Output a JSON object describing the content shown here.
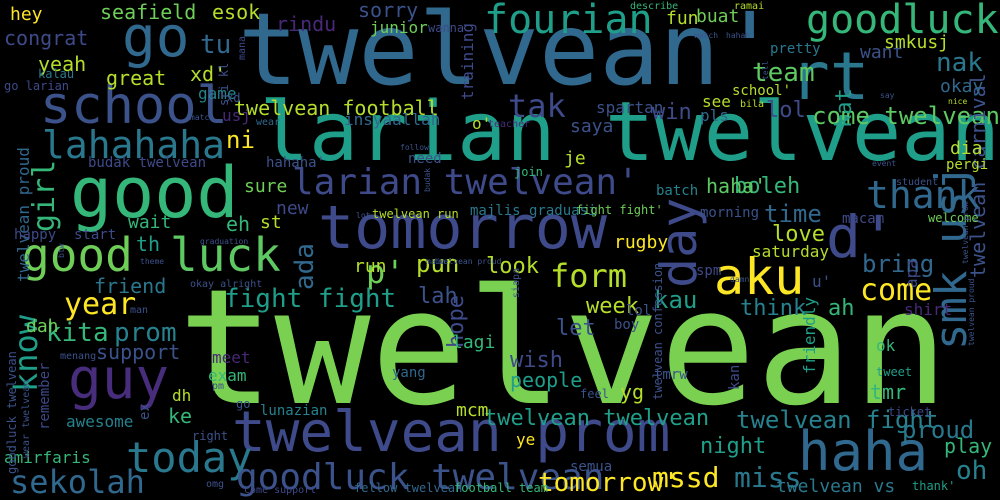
{
  "background": "#000000",
  "palette": [
    "#440154",
    "#482878",
    "#3e4a89",
    "#31688e",
    "#26828e",
    "#1f9e89",
    "#35b779",
    "#6ece58",
    "#b5de2b",
    "#fde725"
  ],
  "words": [
    {
      "text": "twelvean",
      "color": "#7ad151"
    },
    {
      "text": "twelvean'",
      "color": "#31688e"
    },
    {
      "text": "larian twelvean",
      "color": "#1f9e89"
    },
    {
      "text": "tomorrow",
      "color": "#3e4a89"
    },
    {
      "text": "good",
      "color": "#35b779"
    },
    {
      "text": "school",
      "color": "#3b528b"
    },
    {
      "text": "rt",
      "color": "#2a788e"
    },
    {
      "text": "twelvean prom",
      "color": "#3e4a89"
    },
    {
      "text": "larian twelvean'",
      "color": "#3e4a89"
    },
    {
      "text": "good",
      "color": "#6ece58"
    },
    {
      "text": "luck",
      "color": "#5ec962"
    },
    {
      "text": "go",
      "color": "#31688e"
    },
    {
      "text": "guy",
      "color": "#472d7b"
    },
    {
      "text": "aku",
      "color": "#fde725"
    },
    {
      "text": "d'",
      "color": "#3e4a89"
    },
    {
      "text": "haha",
      "color": "#31688e"
    },
    {
      "text": "day",
      "color": "#3e4a89"
    },
    {
      "text": "smk usj",
      "color": "#31688e"
    },
    {
      "text": "fourian",
      "color": "#1f9e89"
    },
    {
      "text": "goodluck",
      "color": "#35b779"
    },
    {
      "text": "today",
      "color": "#2a788e"
    },
    {
      "text": "know",
      "color": "#1f9e89"
    },
    {
      "text": "lahahaha",
      "color": "#2a788e"
    },
    {
      "text": "thank",
      "color": "#31688e"
    },
    {
      "text": "goodluck twelvean",
      "color": "#3b528b"
    },
    {
      "text": "sekolah",
      "color": "#31688e"
    },
    {
      "text": "form",
      "color": "#b5de2b"
    },
    {
      "text": "year",
      "color": "#fde725"
    },
    {
      "text": "girl",
      "color": "#35b779"
    },
    {
      "text": "tak",
      "color": "#3e4a89"
    },
    {
      "text": "p'",
      "color": "#6ece58"
    },
    {
      "text": "come",
      "color": "#fde725"
    },
    {
      "text": "mssd",
      "color": "#fde725"
    },
    {
      "text": "miss",
      "color": "#2a788e"
    },
    {
      "text": "oh",
      "color": "#26828e"
    },
    {
      "text": "nak",
      "color": "#2a788e"
    },
    {
      "text": "fight fight",
      "color": "#1f9e89"
    },
    {
      "text": "tu",
      "color": "#31688e"
    },
    {
      "text": "twelvean fight",
      "color": "#26828e"
    },
    {
      "text": "come twelvean",
      "color": "#5ec962"
    },
    {
      "text": "team",
      "color": "#5ec962"
    },
    {
      "text": "tomorrow'",
      "color": "#fde725"
    },
    {
      "text": "kita",
      "color": "#35b779"
    },
    {
      "text": "prom",
      "color": "#26828e"
    },
    {
      "text": "ada",
      "color": "#31688e"
    },
    {
      "text": "bring",
      "color": "#31688e"
    },
    {
      "text": "pun",
      "color": "#b5de2b"
    },
    {
      "text": "time",
      "color": "#31688e"
    },
    {
      "text": "kau",
      "color": "#1f9e89"
    },
    {
      "text": "proud",
      "color": "#2a788e"
    },
    {
      "text": "support",
      "color": "#3b528b"
    },
    {
      "text": "twelvean twelvean",
      "color": "#1f9e89"
    },
    {
      "text": "boleh",
      "color": "#35b779"
    },
    {
      "text": "haha'",
      "color": "#5ec962"
    },
    {
      "text": "lol",
      "color": "#3e4a89"
    },
    {
      "text": "lah",
      "color": "#3b528b"
    },
    {
      "text": "look",
      "color": "#b5de2b"
    },
    {
      "text": "wish",
      "color": "#3e4a89"
    },
    {
      "text": "love",
      "color": "#b5de2b"
    },
    {
      "text": "play",
      "color": "#35b779"
    },
    {
      "text": "night",
      "color": "#1f9e89"
    },
    {
      "text": "friend",
      "color": "#2a788e"
    },
    {
      "text": "hope",
      "color": "#3e4a89"
    },
    {
      "text": "week",
      "color": "#b5de2b"
    },
    {
      "text": "let",
      "color": "#3b528b"
    },
    {
      "text": "think",
      "color": "#26828e"
    },
    {
      "text": "ah",
      "color": "#35b779"
    },
    {
      "text": "win",
      "color": "#3e4a89"
    },
    {
      "text": "twelvean football",
      "color": "#b5de2b"
    },
    {
      "text": "people",
      "color": "#1f9e89"
    },
    {
      "text": "twelvean vs",
      "color": "#2a788e"
    },
    {
      "text": "great",
      "color": "#b5de2b"
    },
    {
      "text": "yeah",
      "color": "#b5de2b"
    },
    {
      "text": "congrat",
      "color": "#3e4a89"
    },
    {
      "text": "hey",
      "color": "#fde725"
    },
    {
      "text": "seafield",
      "color": "#6ece58"
    },
    {
      "text": "esok",
      "color": "#b5de2b"
    },
    {
      "text": "rindu",
      "color": "#482878"
    },
    {
      "text": "sorry",
      "color": "#3b528b"
    },
    {
      "text": "buat",
      "color": "#6ece58"
    },
    {
      "text": "fun",
      "color": "#b5de2b"
    },
    {
      "text": "twelvean proud",
      "color": "#31688e"
    },
    {
      "text": "twelvean carnival",
      "color": "#3b528b"
    },
    {
      "text": "want",
      "color": "#3b528b"
    },
    {
      "text": "smkusj",
      "color": "#b5de2b"
    },
    {
      "text": "okay",
      "color": "#31688e"
    },
    {
      "text": "ni",
      "color": "#fde725"
    },
    {
      "text": "xd'",
      "color": "#b5de2b"
    },
    {
      "text": "kat",
      "color": "#1f9e89"
    },
    {
      "text": "saya",
      "color": "#3b528b"
    },
    {
      "text": "dah",
      "color": "#6ece58"
    },
    {
      "text": "lagi",
      "color": "#35b779"
    },
    {
      "text": "tmr",
      "color": "#35b779"
    },
    {
      "text": "semua",
      "color": "#3b528b"
    },
    {
      "text": "dia",
      "color": "#b5de2b"
    },
    {
      "text": "mcm",
      "color": "#b5de2b"
    },
    {
      "text": "ke",
      "color": "#35b779"
    },
    {
      "text": "ye",
      "color": "#fde725"
    },
    {
      "text": "yg",
      "color": "#b5de2b"
    },
    {
      "text": "rugby",
      "color": "#fde725"
    },
    {
      "text": "run",
      "color": "#b5de2b"
    },
    {
      "text": "new",
      "color": "#3e4a89"
    },
    {
      "text": "sure",
      "color": "#6ece58"
    },
    {
      "text": "wait",
      "color": "#35b779"
    },
    {
      "text": "eh",
      "color": "#35b779"
    },
    {
      "text": "st",
      "color": "#b5de2b"
    },
    {
      "text": "th",
      "color": "#1f9e89"
    },
    {
      "text": "exam",
      "color": "#35b779"
    },
    {
      "text": "meet",
      "color": "#482878"
    },
    {
      "text": "dh",
      "color": "#b5de2b"
    },
    {
      "text": "amirfaris",
      "color": "#35b779"
    },
    {
      "text": "awesome",
      "color": "#26828e"
    },
    {
      "text": "lunazian",
      "color": "#26828e"
    },
    {
      "text": "insyaallah",
      "color": "#31688e"
    },
    {
      "text": "game",
      "color": "#26828e"
    },
    {
      "text": "spartan",
      "color": "#3b528b"
    },
    {
      "text": "junior",
      "color": "#6ece58"
    },
    {
      "text": "wanna",
      "color": "#3e4a89"
    },
    {
      "text": "training",
      "color": "#3e4a89"
    },
    {
      "text": "kalau",
      "color": "#2a788e"
    },
    {
      "text": "go larian",
      "color": "#3e4a89"
    },
    {
      "text": "pretty",
      "color": "#2a788e"
    },
    {
      "text": "school'",
      "color": "#b5de2b"
    },
    {
      "text": "saturday",
      "color": "#b5de2b"
    },
    {
      "text": "apa",
      "color": "#3e4a89"
    },
    {
      "text": "macam",
      "color": "#3e4a89"
    },
    {
      "text": "spm",
      "color": "#3e4a89"
    },
    {
      "text": "morning",
      "color": "#3b528b"
    },
    {
      "text": "batch",
      "color": "#26828e"
    },
    {
      "text": "twelvean run",
      "color": "#b5de2b"
    },
    {
      "text": "majlis graduasi",
      "color": "#2a788e"
    },
    {
      "text": "fight fight'",
      "color": "#6ece58"
    },
    {
      "text": "je",
      "color": "#b5de2b"
    },
    {
      "text": "budak twelvean",
      "color": "#3e4a89"
    },
    {
      "text": "hahaha'",
      "color": "#3b528b"
    },
    {
      "text": "need",
      "color": "#3b528b"
    },
    {
      "text": "join",
      "color": "#35b779"
    },
    {
      "text": "happy",
      "color": "#3e4a89"
    },
    {
      "text": "start",
      "color": "#3e4a89"
    },
    {
      "text": "pls",
      "color": "#31688e"
    },
    {
      "text": "see",
      "color": "#b5de2b"
    },
    {
      "text": "o'",
      "color": "#b5de2b"
    },
    {
      "text": "usj",
      "color": "#482878"
    },
    {
      "text": "sri kl",
      "color": "#3b528b"
    },
    {
      "text": "wear",
      "color": "#31688e"
    },
    {
      "text": "xd",
      "color": "#3b528b"
    },
    {
      "text": "mana",
      "color": "#3e4a89"
    },
    {
      "text": "follow",
      "color": "#3b528b"
    },
    {
      "text": "teacher",
      "color": "#472d7b"
    },
    {
      "text": "friendly",
      "color": "#1f9e89"
    },
    {
      "text": "u'",
      "color": "#3b528b"
    },
    {
      "text": "shirt",
      "color": "#482878"
    },
    {
      "text": "tweet",
      "color": "#1f9e89"
    },
    {
      "text": "ok",
      "color": "#35b779"
    },
    {
      "text": "pergi",
      "color": "#b5de2b"
    },
    {
      "text": "welcome",
      "color": "#6ece58"
    },
    {
      "text": "student",
      "color": "#3b528b"
    },
    {
      "text": "event",
      "color": "#3b528b"
    },
    {
      "text": "nice",
      "color": "#b5de2b"
    },
    {
      "text": "bila",
      "color": "#b5de2b"
    },
    {
      "text": "tell",
      "color": "#3b528b"
    },
    {
      "text": "ramai",
      "color": "#b5de2b"
    },
    {
      "text": "hahah",
      "color": "#3b528b"
    },
    {
      "text": "watch",
      "color": "#3b528b"
    },
    {
      "text": "describe",
      "color": "#35b779"
    },
    {
      "text": "thank'",
      "color": "#1f9e89"
    },
    {
      "text": "ticket",
      "color": "#3e4a89"
    },
    {
      "text": "tmrw",
      "color": "#3b528b"
    },
    {
      "text": "kan",
      "color": "#3e4a89"
    },
    {
      "text": "feel",
      "color": "#3b528b"
    },
    {
      "text": "yang",
      "color": "#31688e"
    },
    {
      "text": "boy",
      "color": "#3b528b"
    },
    {
      "text": "lol'",
      "color": "#3b528b"
    },
    {
      "text": "right",
      "color": "#3b528b"
    },
    {
      "text": "omg",
      "color": "#3b528b"
    },
    {
      "text": "come support",
      "color": "#3e4a89"
    },
    {
      "text": "fellow twelvean",
      "color": "#31688e"
    },
    {
      "text": "football team",
      "color": "#35b779"
    },
    {
      "text": "remember",
      "color": "#3e4a89"
    },
    {
      "text": "menang",
      "color": "#3b528b"
    },
    {
      "text": "pm",
      "color": "#3b528b"
    },
    {
      "text": "ex",
      "color": "#3b528b"
    },
    {
      "text": "siapa",
      "color": "#3b528b"
    },
    {
      "text": "twelvean confession",
      "color": "#3b528b"
    },
    {
      "text": "goodluck twelvean",
      "color": "#3b528b"
    },
    {
      "text": "wear twelvean",
      "color": "#3b528b"
    },
    {
      "text": "twelvean proud",
      "color": "#3b528b"
    },
    {
      "text": "okay alright",
      "color": "#3b528b"
    },
    {
      "text": "graduation",
      "color": "#3b528b"
    },
    {
      "text": "theme",
      "color": "#3b528b"
    },
    {
      "text": "damn",
      "color": "#3b528b"
    },
    {
      "text": "main",
      "color": "#3b528b"
    },
    {
      "text": "twelvean prom",
      "color": "#3b528b"
    },
    {
      "text": "budak",
      "color": "#3b528b"
    },
    {
      "text": "lot",
      "color": "#3b528b"
    },
    {
      "text": "say",
      "color": "#3b528b"
    },
    {
      "text": "btw",
      "color": "#3b528b"
    },
    {
      "text": "match",
      "color": "#3b528b"
    },
    {
      "text": "man",
      "color": "#3b528b"
    },
    {
      "text": "twelvean proud",
      "color": "#3b528b"
    },
    {
      "text": "go",
      "color": "#3b528b"
    }
  ]
}
